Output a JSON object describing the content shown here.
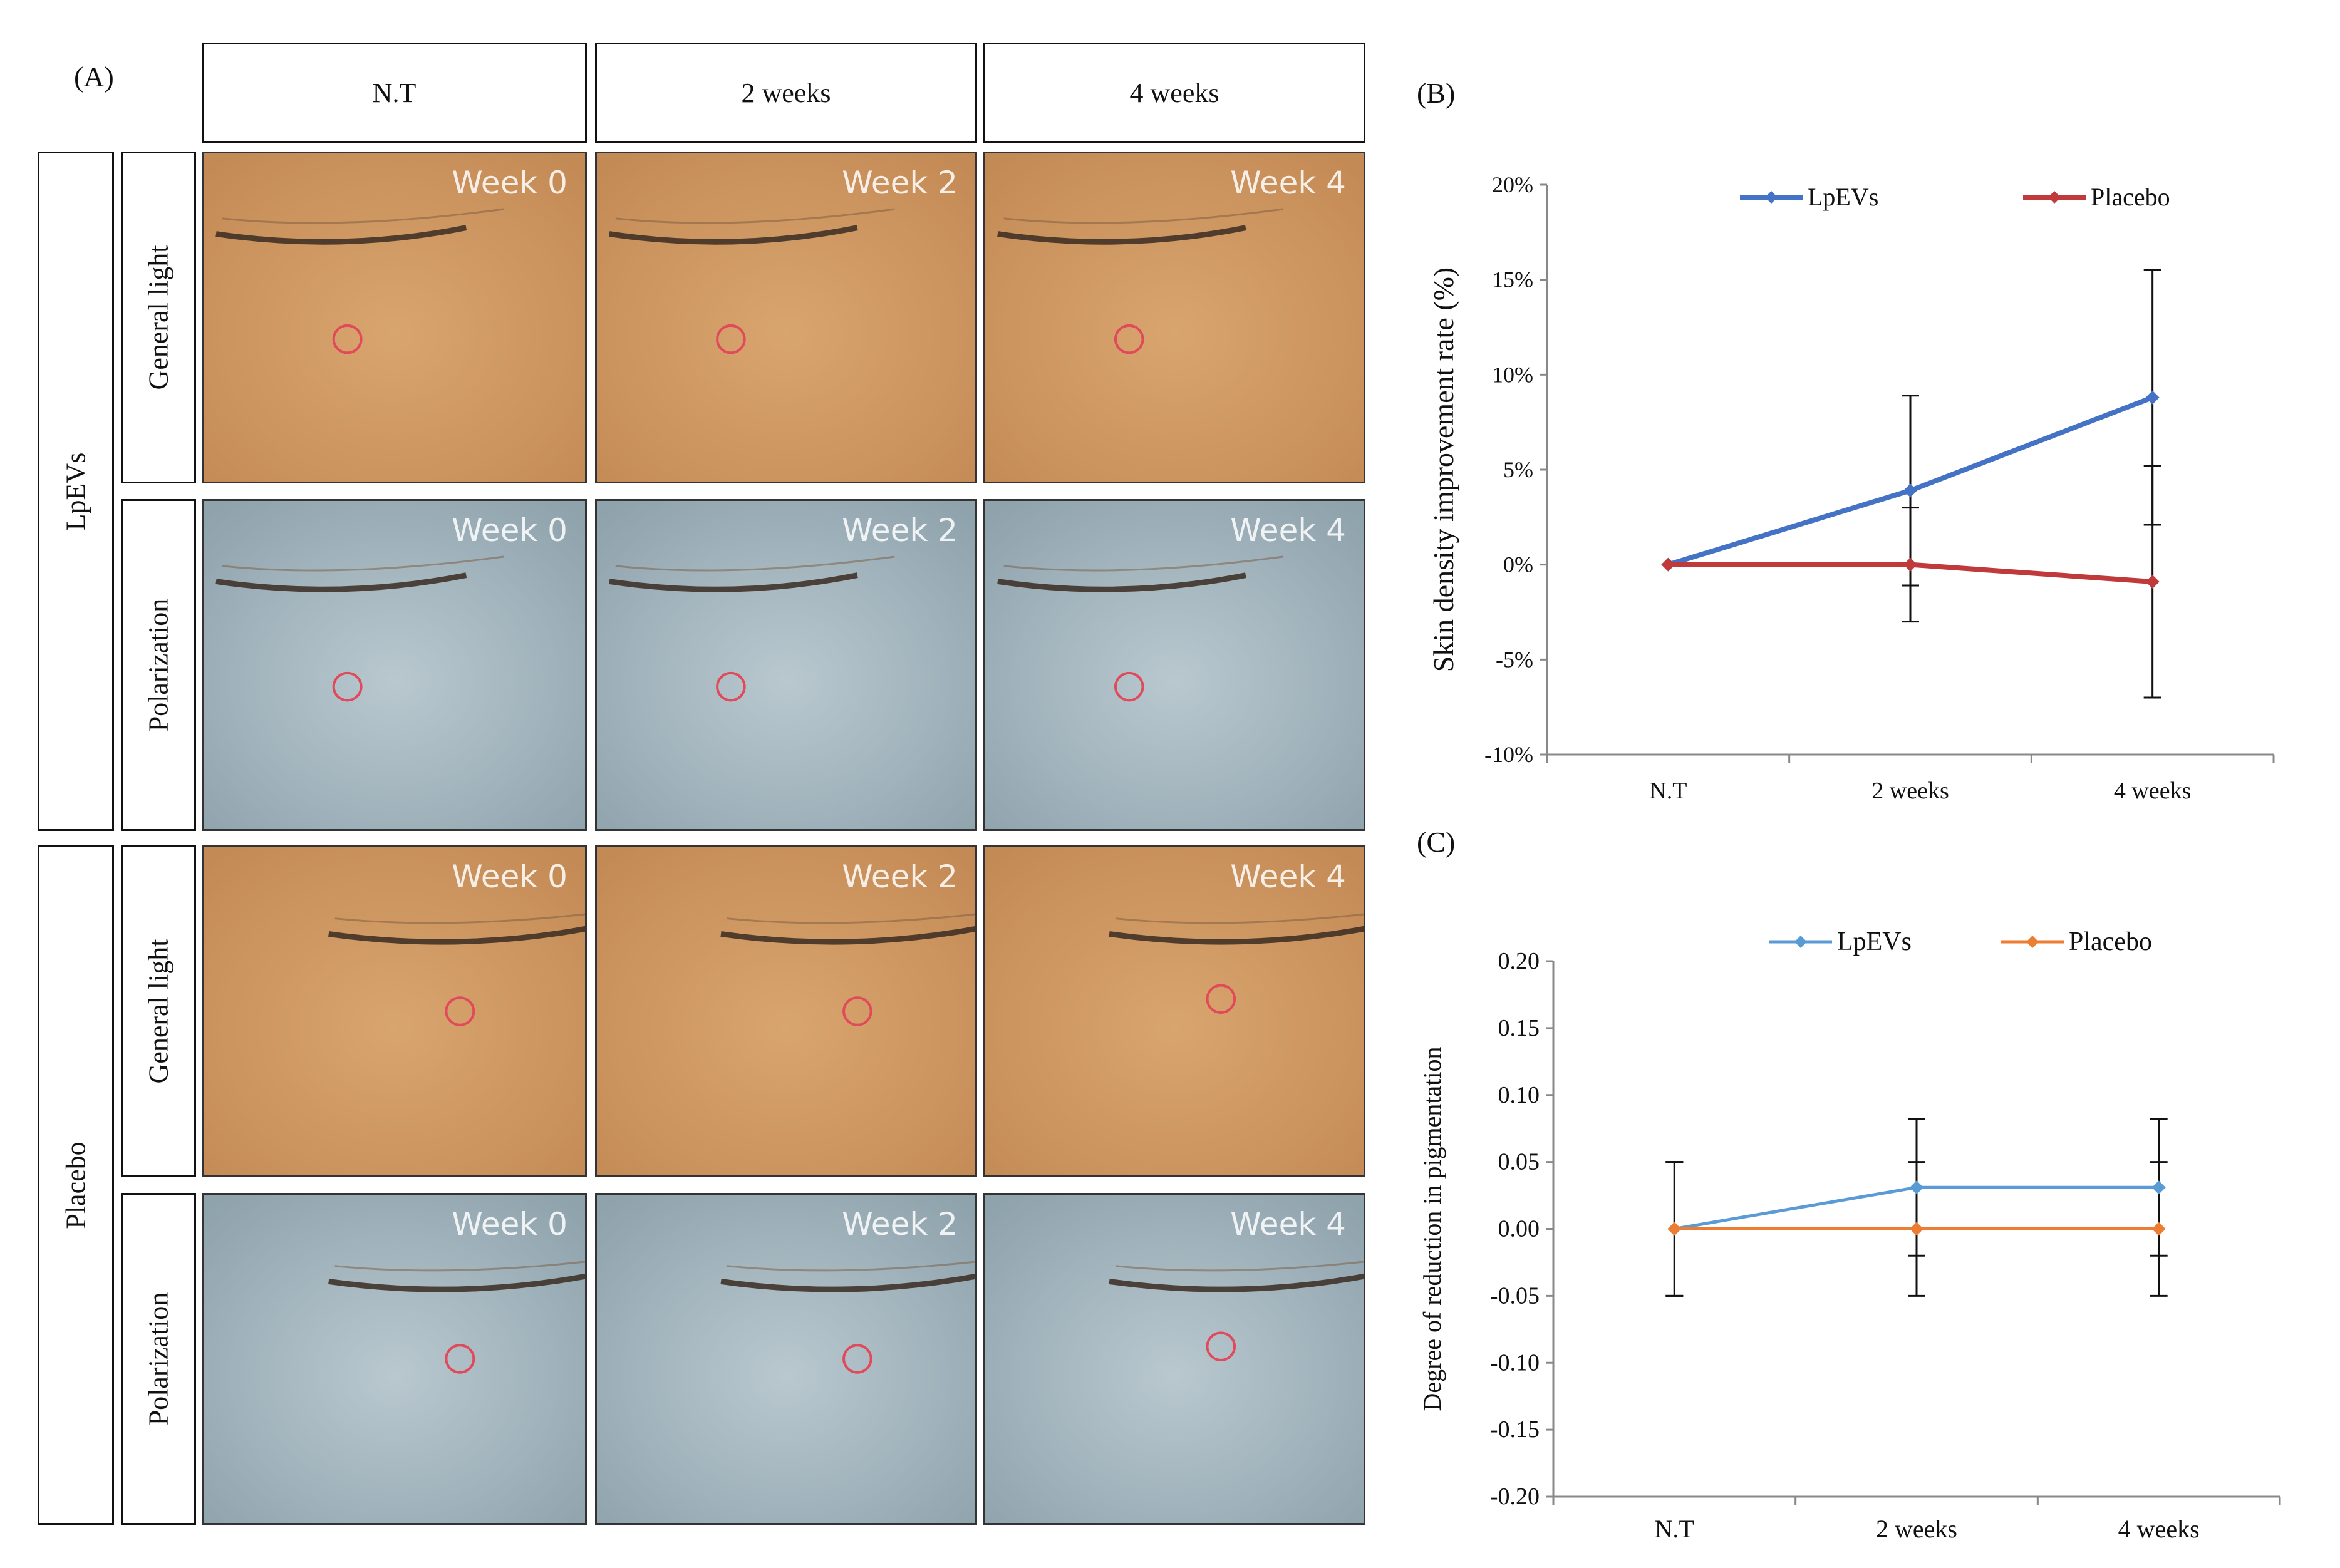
{
  "panel_a": {
    "letter": "(A)",
    "columns": [
      "N.T",
      "2 weeks",
      "4 weeks"
    ],
    "groups": [
      "LpEVs",
      "Placebo"
    ],
    "conditions": [
      "General light",
      "Polarization"
    ],
    "week_labels": [
      "Week 0",
      "Week 2",
      "Week 4"
    ],
    "colors": {
      "general_light": "#d9a56f",
      "polarization": "#b9c8cf",
      "marker_circle": "#e04a5a"
    }
  },
  "chart_data": [
    {
      "panel": "(B)",
      "type": "line",
      "title": "",
      "xlabel": "",
      "ylabel": "Skin density improvement rate (%)",
      "categories": [
        "N.T",
        "2 weeks",
        "4 weeks"
      ],
      "ylim": [
        -0.1,
        0.2
      ],
      "yticks": [
        "-10%",
        "-5%",
        "0%",
        "5%",
        "10%",
        "15%",
        "20%"
      ],
      "ytick_values": [
        -0.1,
        -0.05,
        0.0,
        0.05,
        0.1,
        0.15,
        0.2
      ],
      "legend_position": "top",
      "grid": false,
      "series": [
        {
          "name": "LpEVs",
          "color": "#4472c4",
          "values": [
            0.0,
            0.039,
            0.088
          ],
          "error": [
            0.0,
            0.05,
            0.067
          ]
        },
        {
          "name": "Placebo",
          "color": "#c0393b",
          "values": [
            0.0,
            0.0,
            -0.009
          ],
          "error": [
            0.0,
            0.03,
            0.061
          ]
        }
      ]
    },
    {
      "panel": "(C)",
      "type": "line",
      "title": "",
      "xlabel": "",
      "ylabel": "Degree of reduction in pigmentation",
      "categories": [
        "N.T",
        "2 weeks",
        "4 weeks"
      ],
      "ylim": [
        -0.2,
        0.2
      ],
      "yticks": [
        "-0.20",
        "-0.15",
        "-0.10",
        "-0.05",
        "0.00",
        "0.05",
        "0.10",
        "0.15",
        "0.20"
      ],
      "ytick_values": [
        -0.2,
        -0.15,
        -0.1,
        -0.05,
        0.0,
        0.05,
        0.1,
        0.15,
        0.2
      ],
      "legend_position": "top",
      "grid": false,
      "series": [
        {
          "name": "LpEVs",
          "color": "#5b9bd5",
          "values": [
            0.0,
            0.031,
            0.031
          ],
          "error": [
            0.05,
            0.051,
            0.051
          ]
        },
        {
          "name": "Placebo",
          "color": "#ed7d31",
          "values": [
            0.0,
            0.0,
            0.0
          ],
          "error": [
            0.05,
            0.05,
            0.05
          ]
        }
      ]
    }
  ]
}
